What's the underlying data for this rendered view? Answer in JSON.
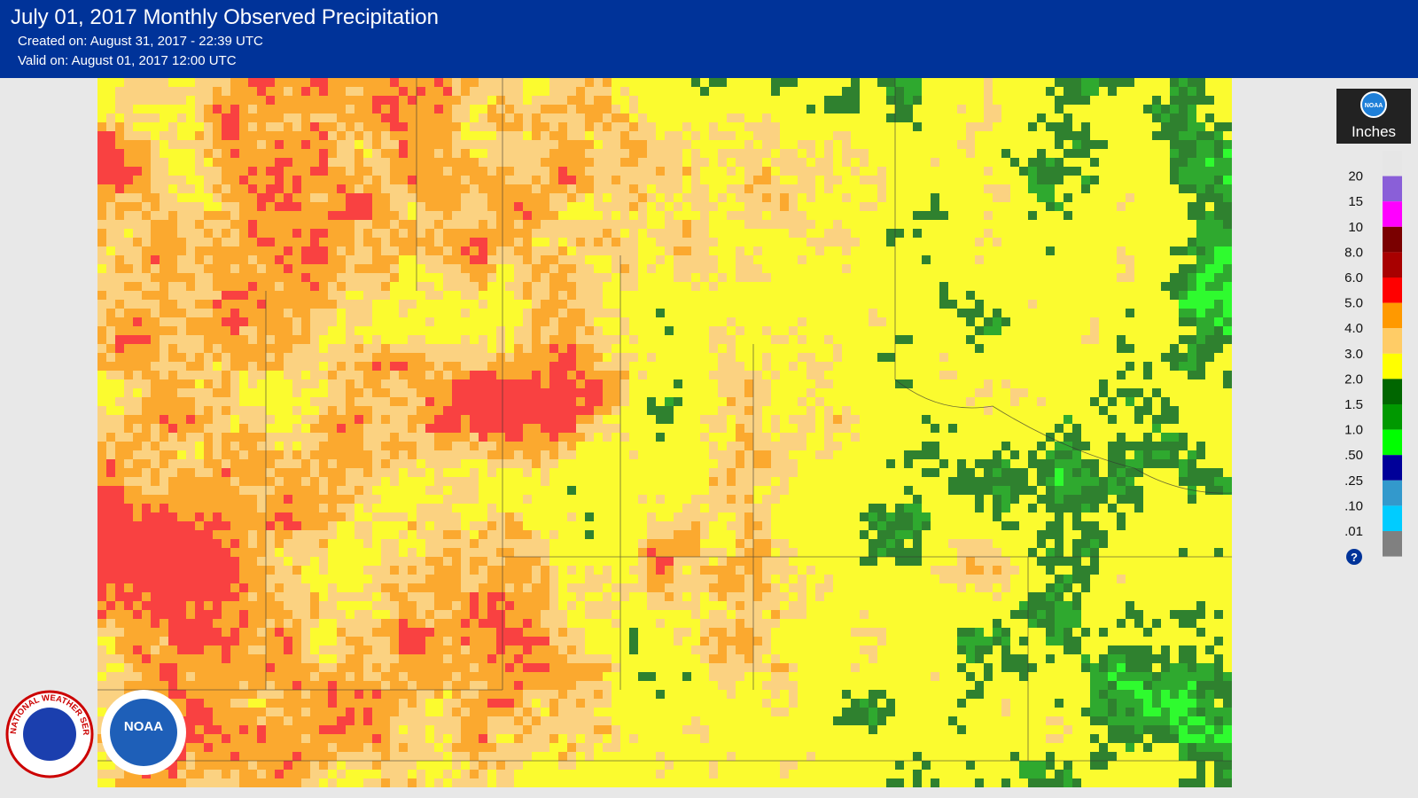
{
  "header": {
    "title": "July 01, 2017 Monthly Observed Precipitation",
    "created": "Created on: August 31, 2017 - 22:39 UTC",
    "valid": "Valid on: August 01, 2017 12:00 UTC"
  },
  "legend": {
    "title": "Inches",
    "logo": "NOAA",
    "labels": [
      "20",
      "15",
      "10",
      "8.0",
      "6.0",
      "5.0",
      "4.0",
      "3.0",
      "2.0",
      "1.5",
      "1.0",
      ".50",
      ".25",
      ".10",
      ".01"
    ],
    "colors": [
      "#e6e6e6",
      "#8a5fd8",
      "#ff00ff",
      "#7a0000",
      "#a80000",
      "#ff0000",
      "#ff9900",
      "#ffcc66",
      "#ffff00",
      "#006600",
      "#009900",
      "#00ff00",
      "#000099",
      "#3399cc",
      "#00ccff",
      "#808080"
    ],
    "help": "?"
  },
  "logos": {
    "nws": "NATIONAL WEATHER SERVICE",
    "noaa": "NOAA"
  }
}
